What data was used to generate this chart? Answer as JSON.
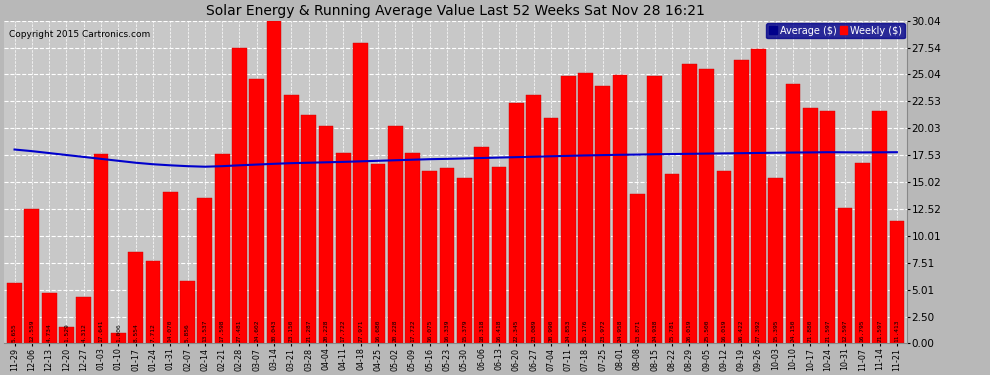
{
  "title": "Solar Energy & Running Average Value Last 52 Weeks Sat Nov 28 16:21",
  "copyright": "Copyright 2015 Cartronics.com",
  "bar_color": "#ff0000",
  "avg_line_color": "#0000cc",
  "background_color": "#b8b8b8",
  "plot_bg_color": "#c8c8c8",
  "grid_color": "#ffffff",
  "ytick_values": [
    0.0,
    2.5,
    5.01,
    7.51,
    10.01,
    12.52,
    15.02,
    17.53,
    20.03,
    22.53,
    25.04,
    27.54,
    30.04
  ],
  "ylim": [
    0,
    30.04
  ],
  "legend_labels": [
    "Average ($)",
    "Weekly ($)"
  ],
  "categories": [
    "11-29",
    "12-06",
    "12-13",
    "12-20",
    "12-27",
    "01-03",
    "01-10",
    "01-17",
    "01-24",
    "01-31",
    "02-07",
    "02-14",
    "02-21",
    "02-28",
    "03-07",
    "03-14",
    "03-21",
    "03-28",
    "04-04",
    "04-11",
    "04-18",
    "04-25",
    "05-02",
    "05-09",
    "05-16",
    "05-23",
    "05-30",
    "06-06",
    "06-13",
    "06-20",
    "06-27",
    "07-04",
    "07-11",
    "07-18",
    "07-25",
    "08-01",
    "08-08",
    "08-15",
    "08-22",
    "08-29",
    "09-05",
    "09-12",
    "09-19",
    "09-26",
    "10-03",
    "10-10",
    "10-17",
    "10-24",
    "10-31",
    "11-07",
    "11-14",
    "11-21"
  ],
  "bar_labels": [
    "5.655",
    "12.559",
    "4.734",
    "1.529",
    "4.312",
    "17.641",
    "1.006",
    "8.554",
    "7.712",
    "14.070",
    "5.856",
    "13.537",
    "17.598",
    "27.481",
    "24.602",
    "30.043",
    "23.150",
    "21.287",
    "20.228",
    "17.722",
    "27.971",
    "16.680",
    "20.228",
    "17.722",
    "16.075",
    "16.339",
    "15.379",
    "18.318",
    "16.418",
    "22.345",
    "23.089",
    "20.990",
    "24.853",
    "25.176",
    "23.972",
    "24.958",
    "13.871",
    "24.938",
    "15.781",
    "26.019",
    "25.500",
    "16.019",
    "26.422",
    "27.392",
    "15.395",
    "24.150",
    "21.880",
    "21.597",
    "12.597",
    "16.795",
    "21.597",
    "11.413"
  ],
  "values": [
    5.655,
    12.559,
    4.734,
    1.529,
    4.312,
    17.641,
    1.006,
    8.554,
    7.712,
    14.07,
    5.856,
    13.537,
    17.598,
    27.481,
    24.602,
    30.043,
    23.15,
    21.287,
    20.228,
    17.722,
    27.971,
    16.68,
    20.228,
    17.722,
    16.075,
    16.339,
    15.379,
    18.318,
    16.418,
    22.345,
    23.089,
    20.99,
    24.853,
    25.176,
    23.972,
    24.958,
    13.871,
    24.938,
    15.781,
    26.019,
    25.5,
    16.019,
    26.422,
    27.392,
    15.395,
    24.15,
    21.88,
    21.597,
    12.597,
    16.795,
    21.597,
    11.413
  ],
  "avg_values": [
    18.05,
    17.9,
    17.72,
    17.54,
    17.36,
    17.18,
    17.0,
    16.82,
    16.68,
    16.58,
    16.5,
    16.45,
    16.5,
    16.58,
    16.65,
    16.72,
    16.78,
    16.82,
    16.86,
    16.9,
    16.95,
    17.0,
    17.05,
    17.1,
    17.15,
    17.18,
    17.22,
    17.26,
    17.3,
    17.34,
    17.38,
    17.42,
    17.46,
    17.5,
    17.53,
    17.56,
    17.58,
    17.61,
    17.63,
    17.65,
    17.67,
    17.69,
    17.71,
    17.73,
    17.75,
    17.77,
    17.78,
    17.8,
    17.79,
    17.78,
    17.79,
    17.8
  ]
}
